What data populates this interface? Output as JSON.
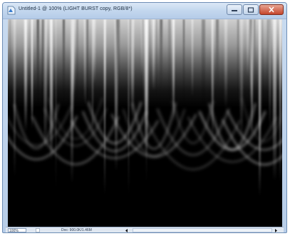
{
  "window": {
    "title": "Untitled-1 @ 100% (LIGHT BURST copy, RGB/8*)"
  },
  "icons": {
    "app": "photoshop-document-icon",
    "minimize": "minimize-icon",
    "maximize": "maximize-icon",
    "close": "close-icon",
    "status": "status-options-icon",
    "scroll_left": "scroll-left-icon",
    "scroll_right": "scroll-right-icon"
  },
  "statusbar": {
    "zoom": "100%",
    "doc_info": "Doc: 900.0K/1.46M"
  },
  "colors": {
    "canvas_background": "#000000",
    "titlebar": "#c3d7ee",
    "close_button": "#c5452b"
  }
}
